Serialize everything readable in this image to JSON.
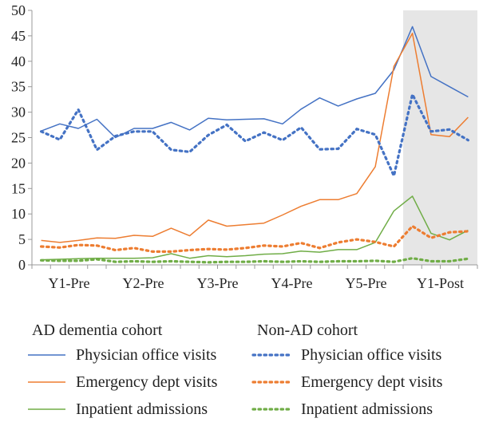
{
  "chart_data": {
    "type": "line",
    "title": "",
    "xlabel": "",
    "ylabel": "",
    "ylim": [
      0,
      50
    ],
    "yticks": [
      0,
      5,
      10,
      15,
      20,
      25,
      30,
      35,
      40,
      45,
      50
    ],
    "period_labels": [
      "Y1-Pre",
      "Y2-Pre",
      "Y3-Pre",
      "Y4-Pre",
      "Y5-Pre",
      "Y1-Post"
    ],
    "quarters": [
      "Y1-Pre Q1",
      "Y1-Pre Q2",
      "Y1-Pre Q3",
      "Y1-Pre Q4",
      "Y2-Pre Q1",
      "Y2-Pre Q2",
      "Y2-Pre Q3",
      "Y2-Pre Q4",
      "Y3-Pre Q1",
      "Y3-Pre Q2",
      "Y3-Pre Q3",
      "Y3-Pre Q4",
      "Y4-Pre Q1",
      "Y4-Pre Q2",
      "Y4-Pre Q3",
      "Y4-Pre Q4",
      "Y5-Pre Q1",
      "Y5-Pre Q2",
      "Y5-Pre Q3",
      "Y5-Pre Q4",
      "Y1-Post Q1",
      "Y1-Post Q2",
      "Y1-Post Q3",
      "Y1-Post Q4"
    ],
    "shaded_region": "Y1-Post",
    "grid": false,
    "legend": {
      "groups": [
        {
          "heading": "AD dementia cohort",
          "line_style": "solid"
        },
        {
          "heading": "Non-AD cohort",
          "line_style": "dotted"
        }
      ]
    },
    "series": [
      {
        "name": "Physician office visits",
        "cohort": "AD dementia cohort",
        "style": "solid",
        "color": "#4472c4",
        "values": [
          26.3,
          27.7,
          26.8,
          28.6,
          25.0,
          26.8,
          26.8,
          28.0,
          26.5,
          28.8,
          28.5,
          28.6,
          28.7,
          27.7,
          30.6,
          32.8,
          31.2,
          32.6,
          33.7,
          38.3,
          46.8,
          37.0,
          35.0,
          33.0
        ]
      },
      {
        "name": "Emergency dept visits",
        "cohort": "AD dementia cohort",
        "style": "solid",
        "color": "#ed7d31",
        "values": [
          4.8,
          4.4,
          4.8,
          5.3,
          5.2,
          5.8,
          5.6,
          7.2,
          5.7,
          8.8,
          7.6,
          7.9,
          8.2,
          9.8,
          11.5,
          12.8,
          12.8,
          14.0,
          19.3,
          39.0,
          45.5,
          25.6,
          25.2,
          29.0
        ]
      },
      {
        "name": "Inpatient admissions",
        "cohort": "AD dementia cohort",
        "style": "solid",
        "color": "#70ad47",
        "values": [
          1.0,
          1.1,
          1.2,
          1.3,
          1.3,
          1.3,
          1.4,
          2.2,
          1.3,
          1.8,
          1.6,
          1.8,
          2.1,
          2.2,
          2.7,
          2.5,
          3.0,
          3.0,
          4.4,
          10.6,
          13.5,
          6.2,
          4.9,
          6.8
        ]
      },
      {
        "name": "Physician office visits",
        "cohort": "Non-AD cohort",
        "style": "dotted",
        "color": "#4472c4",
        "values": [
          26.2,
          24.6,
          30.5,
          22.6,
          25.3,
          26.2,
          26.2,
          22.6,
          22.2,
          25.5,
          27.5,
          24.3,
          26.0,
          24.5,
          27.0,
          22.7,
          22.8,
          26.7,
          25.6,
          17.5,
          33.5,
          26.2,
          26.6,
          24.5
        ]
      },
      {
        "name": "Emergency dept visits",
        "cohort": "Non-AD cohort",
        "style": "dotted",
        "color": "#ed7d31",
        "values": [
          3.6,
          3.4,
          3.9,
          3.8,
          2.9,
          3.3,
          2.6,
          2.6,
          2.9,
          3.1,
          3.0,
          3.3,
          3.8,
          3.6,
          4.3,
          3.3,
          4.4,
          5.0,
          4.5,
          3.6,
          7.6,
          5.3,
          6.4,
          6.6
        ]
      },
      {
        "name": "Inpatient admissions",
        "cohort": "Non-AD cohort",
        "style": "dotted",
        "color": "#70ad47",
        "values": [
          0.9,
          0.8,
          0.8,
          1.1,
          0.6,
          0.7,
          0.6,
          0.7,
          0.6,
          0.5,
          0.6,
          0.6,
          0.7,
          0.6,
          0.7,
          0.6,
          0.7,
          0.7,
          0.8,
          0.6,
          1.3,
          0.7,
          0.7,
          1.2
        ]
      }
    ]
  },
  "colors": {
    "physician": "#4472c4",
    "emergency": "#ed7d31",
    "inpatient": "#70ad47",
    "shade": "#e6e6e6",
    "axis": "#999999"
  }
}
